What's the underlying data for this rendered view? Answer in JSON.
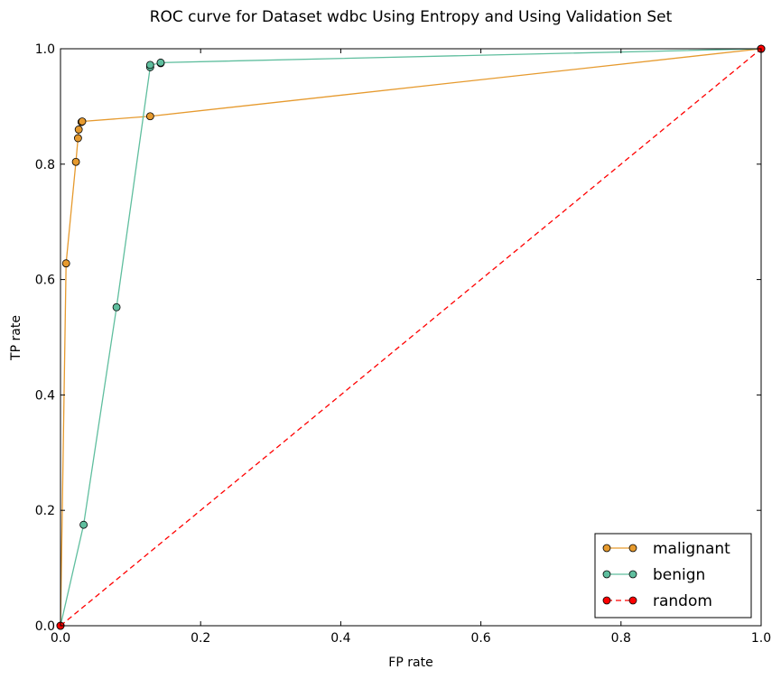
{
  "chart_data": {
    "type": "line",
    "title": "ROC curve for Dataset wdbc Using Entropy and Using Validation Set",
    "xlabel": "FP rate",
    "ylabel": "TP rate",
    "xlim": [
      0.0,
      1.0
    ],
    "ylim": [
      0.0,
      1.0
    ],
    "xticks": [
      "0.0",
      "0.2",
      "0.4",
      "0.6",
      "0.8",
      "1.0"
    ],
    "yticks": [
      "0.0",
      "0.2",
      "0.4",
      "0.6",
      "0.8",
      "1.0"
    ],
    "grid": false,
    "legend_position": "bottom-right",
    "series": [
      {
        "name": "malignant",
        "color": "#e69a2e",
        "line_style": "solid",
        "marker": "circle",
        "x": [
          0.0,
          0.008,
          0.022,
          0.025,
          0.026,
          0.03,
          0.031,
          0.128,
          1.0
        ],
        "y": [
          0.0,
          0.628,
          0.804,
          0.845,
          0.86,
          0.873,
          0.874,
          0.883,
          1.0
        ]
      },
      {
        "name": "benign",
        "color": "#5fbe9e",
        "line_style": "solid",
        "marker": "circle",
        "x": [
          0.0,
          0.033,
          0.08,
          0.128,
          0.128,
          0.143,
          0.143,
          1.0
        ],
        "y": [
          0.0,
          0.175,
          0.552,
          0.968,
          0.972,
          0.975,
          0.976,
          1.0
        ]
      },
      {
        "name": "random",
        "color": "#ff0000",
        "line_style": "dashed",
        "marker": "circle",
        "x": [
          0.0,
          1.0
        ],
        "y": [
          0.0,
          1.0
        ]
      }
    ]
  }
}
